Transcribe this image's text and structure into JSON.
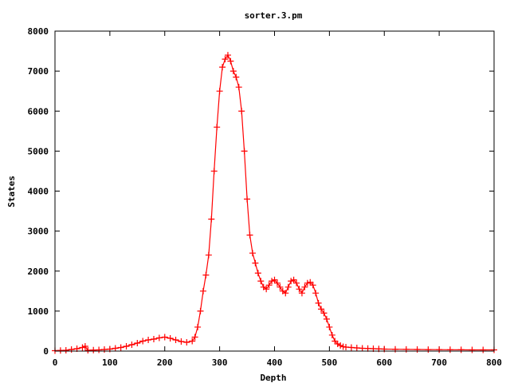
{
  "chart_data": {
    "type": "line",
    "title": "sorter.3.pm",
    "xlabel": "Depth",
    "ylabel": "States",
    "xlim": [
      0,
      800
    ],
    "ylim": [
      0,
      8000
    ],
    "xticks": [
      0,
      100,
      200,
      300,
      400,
      500,
      600,
      700,
      800
    ],
    "yticks": [
      0,
      1000,
      2000,
      3000,
      4000,
      5000,
      6000,
      7000,
      8000
    ],
    "xtick_labels": [
      "0",
      "100",
      "200",
      "300",
      "400",
      "500",
      "600",
      "700",
      "800"
    ],
    "ytick_labels": [
      "0",
      "1000",
      "2000",
      "3000",
      "4000",
      "5000",
      "6000",
      "7000",
      "8000"
    ],
    "grid": false,
    "marker": "plus",
    "series": [
      {
        "color": "#ff0000",
        "x": [
          0,
          10,
          20,
          30,
          40,
          50,
          55,
          60,
          70,
          80,
          90,
          100,
          110,
          120,
          130,
          140,
          150,
          160,
          170,
          180,
          190,
          200,
          210,
          220,
          230,
          240,
          250,
          255,
          260,
          265,
          270,
          275,
          280,
          285,
          290,
          295,
          300,
          305,
          310,
          315,
          320,
          325,
          330,
          335,
          340,
          345,
          350,
          355,
          360,
          365,
          370,
          375,
          380,
          385,
          390,
          395,
          400,
          405,
          410,
          415,
          420,
          425,
          430,
          435,
          440,
          445,
          450,
          455,
          460,
          465,
          470,
          475,
          480,
          485,
          490,
          495,
          500,
          505,
          510,
          515,
          520,
          525,
          530,
          540,
          550,
          560,
          570,
          580,
          590,
          600,
          620,
          640,
          660,
          680,
          700,
          720,
          740,
          760,
          780,
          800
        ],
        "y": [
          10,
          15,
          20,
          40,
          60,
          90,
          120,
          20,
          25,
          30,
          40,
          50,
          70,
          90,
          120,
          160,
          200,
          250,
          280,
          300,
          330,
          350,
          320,
          280,
          240,
          220,
          250,
          350,
          600,
          1000,
          1500,
          1900,
          2400,
          3300,
          4500,
          5600,
          6500,
          7100,
          7300,
          7400,
          7250,
          7000,
          6850,
          6600,
          6000,
          5000,
          3800,
          2900,
          2450,
          2200,
          1950,
          1750,
          1600,
          1550,
          1650,
          1750,
          1780,
          1700,
          1600,
          1500,
          1450,
          1600,
          1750,
          1780,
          1700,
          1550,
          1450,
          1600,
          1700,
          1720,
          1650,
          1450,
          1200,
          1050,
          950,
          800,
          600,
          400,
          250,
          180,
          140,
          110,
          100,
          90,
          80,
          70,
          65,
          60,
          55,
          50,
          45,
          42,
          40,
          38,
          36,
          34,
          32,
          30,
          30,
          30
        ]
      }
    ]
  }
}
